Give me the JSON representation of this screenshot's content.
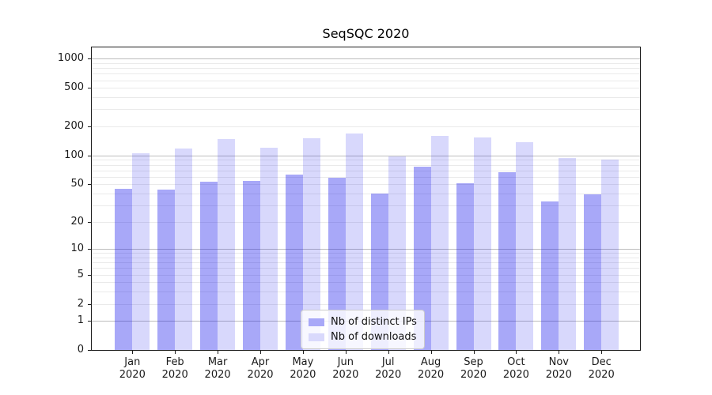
{
  "title": "SeqSQC 2020",
  "chart_data": {
    "type": "bar",
    "title": "SeqSQC 2020",
    "categories": [
      "Jan 2020",
      "Feb 2020",
      "Mar 2020",
      "Apr 2020",
      "May 2020",
      "Jun 2020",
      "Jul 2020",
      "Aug 2020",
      "Sep 2020",
      "Oct 2020",
      "Nov 2020",
      "Dec 2020"
    ],
    "months": [
      "Jan",
      "Feb",
      "Mar",
      "Apr",
      "May",
      "Jun",
      "Jul",
      "Aug",
      "Sep",
      "Oct",
      "Nov",
      "Dec"
    ],
    "year_label": "2020",
    "series": [
      {
        "name": "Nb of distinct IPs",
        "color": "#a8a8f8",
        "fill": "rgba(15,15,235,0.36)",
        "values": [
          45,
          44,
          53,
          54,
          63,
          59,
          40,
          76,
          51,
          67,
          33,
          39
        ]
      },
      {
        "name": "Nb of downloads",
        "color": "#d9d9fc",
        "fill": "rgba(15,15,235,0.16)",
        "values": [
          106,
          119,
          148,
          120,
          151,
          168,
          97,
          160,
          155,
          137,
          94,
          90
        ]
      }
    ],
    "y_scale": "log1p",
    "y_ticks": [
      0,
      1,
      2,
      5,
      10,
      20,
      50,
      100,
      200,
      500,
      1000
    ],
    "ylim": [
      0,
      1320
    ],
    "xlabel": "",
    "ylabel": "",
    "grid": true,
    "grid_major_color": "#bdbdbd",
    "grid_minor_color": "#eaeaea",
    "legend_location": "lower-center"
  }
}
